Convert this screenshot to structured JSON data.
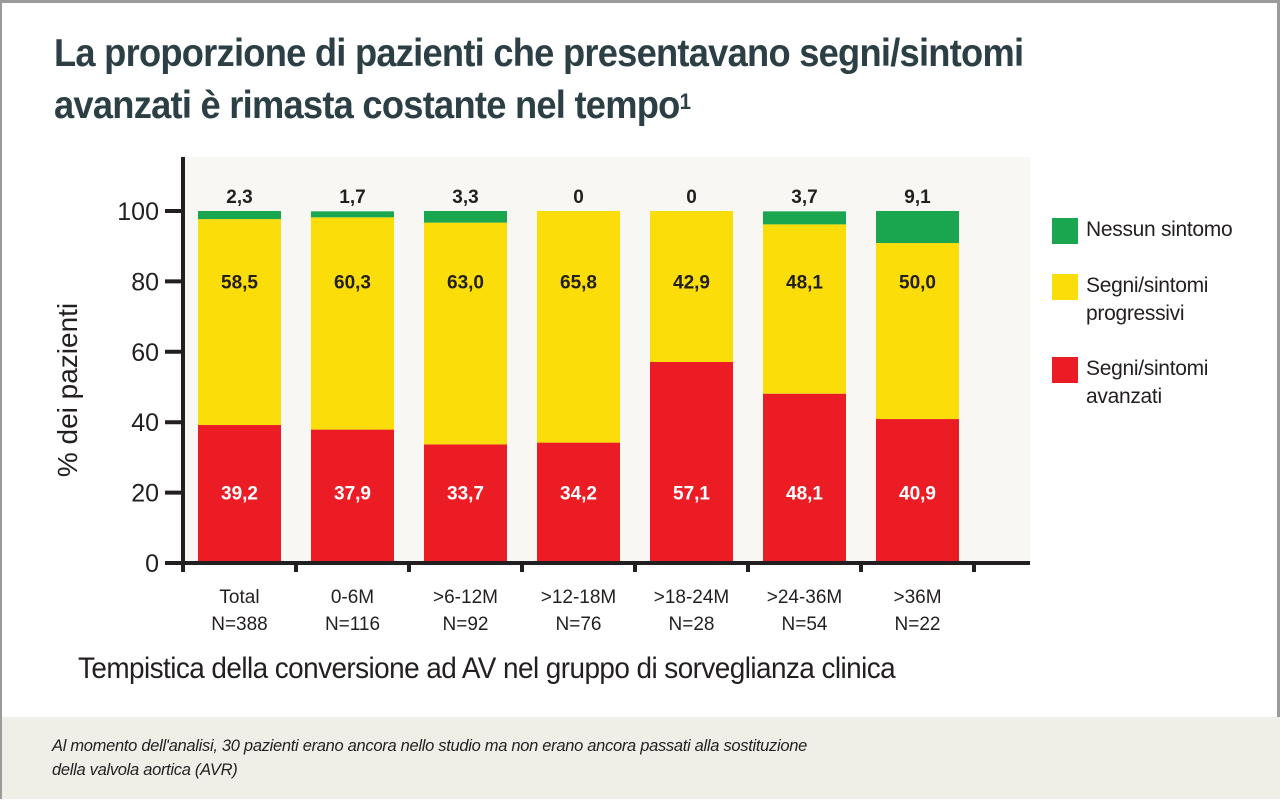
{
  "title": "La proporzione di pazienti che presentavano segni/sintomi avanzati è rimasta costante nel tempo",
  "title_line1": "La proporzione di pazienti che presentavano segni/sintomi",
  "title_line2": "avanzati è rimasta costante nel tempo",
  "title_footnote": "1",
  "footer_note": "Al momento dell'analisi, 30 pazienti erano ancora nello studio ma non erano ancora passati alla sostituzione della valvola aortica (AVR)",
  "footer_line1": "Al momento dell'analisi, 30 pazienti erano ancora nello studio ma non erano ancora passati alla sostituzione",
  "footer_line2": "della valvola aortica (AVR)",
  "colors": {
    "nessun_sintomo": "#1aa64e",
    "progressivi": "#fbdd0a",
    "avanzati": "#ec1c24",
    "plot_background": "#f8f7f4",
    "axis": "#231f20",
    "title": "#2b3f45",
    "footer_background": "#f0efe7"
  },
  "chart_data": {
    "type": "bar",
    "stacked": true,
    "title": "La proporzione di pazienti che presentavano segni/sintomi avanzati è rimasta costante nel tempo",
    "xlabel": "Tempistica della conversione ad AV nel gruppo di sorveglianza clinica",
    "ylabel": "% dei pazienti",
    "ylim": [
      0,
      115
    ],
    "yticks": [
      0,
      20,
      40,
      60,
      80,
      100
    ],
    "grid": false,
    "legend_position": "right",
    "categories": [
      {
        "label": "Total",
        "n": "N=388"
      },
      {
        "label": "0-6M",
        "n": "N=116"
      },
      {
        "label": ">6-12M",
        "n": "N=92"
      },
      {
        "label": ">12-18M",
        "n": "N=76"
      },
      {
        "label": ">18-24M",
        "n": "N=28"
      },
      {
        "label": ">24-36M",
        "n": "N=54"
      },
      {
        "label": ">36M",
        "n": "N=22"
      }
    ],
    "series": [
      {
        "key": "avanzati",
        "name": "Segni/sintomi avanzati",
        "name_line1": "Segni/sintomi",
        "name_line2": "avanzati",
        "color": "#ec1c24",
        "values": [
          39.2,
          37.9,
          33.7,
          34.2,
          57.1,
          48.1,
          40.9
        ],
        "labels": [
          "39,2",
          "37,9",
          "33,7",
          "34,2",
          "57,1",
          "48,1",
          "40,9"
        ]
      },
      {
        "key": "progressivi",
        "name": "Segni/sintomi progressivi",
        "name_line1": "Segni/sintomi",
        "name_line2": "progressivi",
        "color": "#fbdd0a",
        "values": [
          58.5,
          60.3,
          63.0,
          65.8,
          42.9,
          48.1,
          50.0
        ],
        "labels": [
          "58,5",
          "60,3",
          "63,0",
          "65,8",
          "42,9",
          "48,1",
          "50,0"
        ]
      },
      {
        "key": "nessun_sintomo",
        "name": "Nessun sintomo",
        "name_line1": "Nessun sintomo",
        "name_line2": "",
        "color": "#1aa64e",
        "values": [
          2.3,
          1.7,
          3.3,
          0,
          0,
          3.7,
          9.1
        ],
        "labels": [
          "2,3",
          "1,7",
          "3,3",
          "0",
          "0",
          "3,7",
          "9,1"
        ]
      }
    ]
  }
}
